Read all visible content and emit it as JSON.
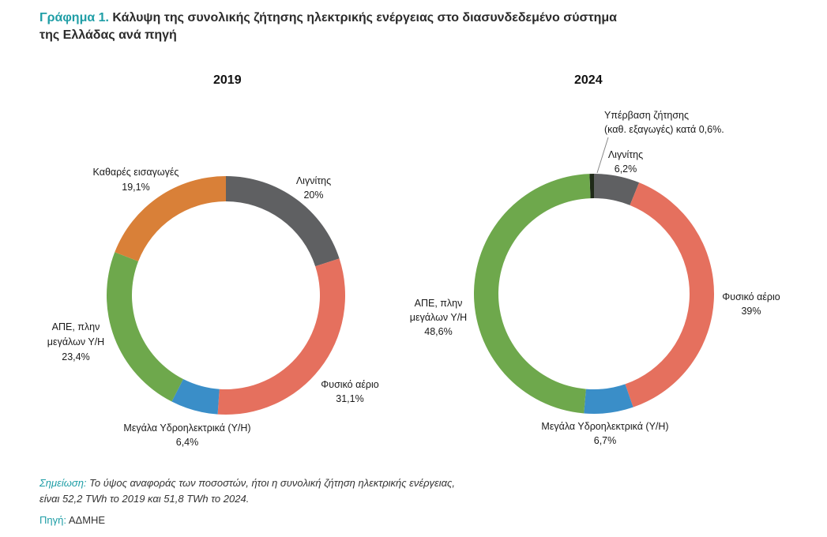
{
  "title": {
    "lead": "Γράφημα 1.",
    "line1": " Κάλυψη της συνολικής ζήτησης ηλεκτρικής ενέργειας στο διασυνδεδεμένο σύστημα",
    "line2": "της Ελλάδας ανά πηγή"
  },
  "chart_data": [
    {
      "type": "pie",
      "title": "2019",
      "slices": [
        {
          "name": "Λιγνίτης",
          "value": 20,
          "label": "20%",
          "color": "#5f6062"
        },
        {
          "name": "Φυσικό αέριο",
          "value": 31.1,
          "label": "31,1%",
          "color": "#e5705e"
        },
        {
          "name": "Μεγάλα Υδροηλεκτρικά (Υ/Η)",
          "value": 6.4,
          "label": "6,4%",
          "color": "#3a8ec8"
        },
        {
          "name": "ΑΠΕ, πλην μεγάλων Υ/Η",
          "value": 23.4,
          "label": "23,4%",
          "color": "#6ea84c"
        },
        {
          "name": "Καθαρές εισαγωγές",
          "value": 19.1,
          "label": "19,1%",
          "color": "#d98038"
        }
      ]
    },
    {
      "type": "pie",
      "title": "2024",
      "slices": [
        {
          "name": "Λιγνίτης",
          "value": 6.2,
          "label": "6,2%",
          "color": "#5f6062"
        },
        {
          "name": "Φυσικό αέριο",
          "value": 39,
          "label": "39%",
          "color": "#e5705e"
        },
        {
          "name": "Μεγάλα Υδροηλεκτρικά (Υ/Η)",
          "value": 6.7,
          "label": "6,7%",
          "color": "#3a8ec8"
        },
        {
          "name": "ΑΠΕ, πλην μεγάλων Υ/Η",
          "value": 48.6,
          "label": "48,6%",
          "color": "#6ea84c"
        },
        {
          "name": "Υπέρβαση ζήτησης (καθ. εξαγωγές) κατά 0,6%.",
          "value": 0.6,
          "label": "",
          "color": "#1f2a18"
        }
      ],
      "annotation": {
        "line1": "Υπέρβαση ζήτησης",
        "line2": "(καθ. εξαγωγές) κατά 0,6%."
      }
    }
  ],
  "labels2019": {
    "lignite": {
      "name": "Λιγνίτης",
      "value": "20%"
    },
    "gas": {
      "name": "Φυσικό αέριο",
      "value": "31,1%"
    },
    "hydro": {
      "name": "Μεγάλα Υδροηλεκτρικά (Υ/Η)",
      "value": "6,4%"
    },
    "res": {
      "line1": "ΑΠΕ, πλην",
      "line2": "μεγάλων Υ/Η",
      "value": "23,4%"
    },
    "imports": {
      "name": "Καθαρές εισαγωγές",
      "value": "19,1%"
    }
  },
  "labels2024": {
    "lignite": {
      "name": "Λιγνίτης",
      "value": "6,2%"
    },
    "gas": {
      "name": "Φυσικό αέριο",
      "value": "39%"
    },
    "hydro": {
      "name": "Μεγάλα Υδροηλεκτρικά (Υ/Η)",
      "value": "6,7%"
    },
    "res": {
      "line1": "ΑΠΕ, πλην",
      "line2": "μεγάλων Υ/Η",
      "value": "48,6%"
    }
  },
  "note": {
    "key": "Σημείωση:",
    "line1": " Το ύψος αναφοράς των ποσοστών, ήτοι η συνολική ζήτηση ηλεκτρικής ενέργειας,",
    "line2": "είναι 52,2 TWh το 2019 και 51,8 TWh το 2024."
  },
  "source": {
    "key": "Πηγή:",
    "value": " ΑΔΜΗΕ"
  }
}
